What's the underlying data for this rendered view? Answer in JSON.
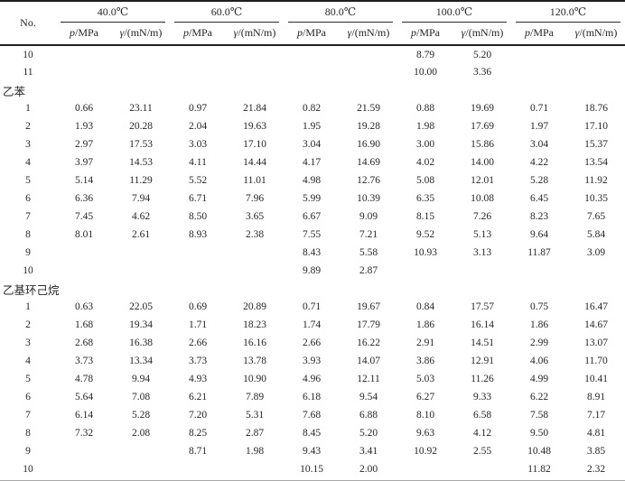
{
  "table": {
    "no_header": "No.",
    "temp_groups": [
      "40.0℃",
      "60.0℃",
      "80.0℃",
      "100.0℃",
      "120.0℃"
    ],
    "pressure_symbol": "p",
    "pressure_unit": "/MPa",
    "tension_symbol": "γ",
    "tension_unit": "/(mN/m)",
    "sections": [
      "乙苯",
      "乙基环己烷"
    ],
    "rows": [
      {
        "type": "data",
        "no": "10",
        "values": [
          "",
          "",
          "",
          "",
          "",
          "",
          "8.79",
          "5.20",
          "",
          ""
        ]
      },
      {
        "type": "data",
        "no": "11",
        "values": [
          "",
          "",
          "",
          "",
          "",
          "",
          "10.00",
          "3.36",
          "",
          ""
        ]
      },
      {
        "type": "section",
        "label": "乙苯"
      },
      {
        "type": "data",
        "no": "1",
        "values": [
          "0.66",
          "23.11",
          "0.97",
          "21.84",
          "0.82",
          "21.59",
          "0.88",
          "19.69",
          "0.71",
          "18.76"
        ]
      },
      {
        "type": "data",
        "no": "2",
        "values": [
          "1.93",
          "20.28",
          "2.04",
          "19.63",
          "1.95",
          "19.28",
          "1.98",
          "17.69",
          "1.97",
          "17.10"
        ]
      },
      {
        "type": "data",
        "no": "3",
        "values": [
          "2.97",
          "17.53",
          "3.03",
          "17.10",
          "3.04",
          "16.90",
          "3.00",
          "15.86",
          "3.04",
          "15.37"
        ]
      },
      {
        "type": "data",
        "no": "4",
        "values": [
          "3.97",
          "14.53",
          "4.11",
          "14.44",
          "4.17",
          "14.69",
          "4.02",
          "14.00",
          "4.22",
          "13.54"
        ]
      },
      {
        "type": "data",
        "no": "5",
        "values": [
          "5.14",
          "11.29",
          "5.52",
          "11.01",
          "4.98",
          "12.76",
          "5.08",
          "12.01",
          "5.28",
          "11.92"
        ]
      },
      {
        "type": "data",
        "no": "6",
        "values": [
          "6.36",
          "7.94",
          "6.71",
          "7.96",
          "5.99",
          "10.39",
          "6.35",
          "10.08",
          "6.45",
          "10.35"
        ]
      },
      {
        "type": "data",
        "no": "7",
        "values": [
          "7.45",
          "4.62",
          "8.50",
          "3.65",
          "6.67",
          "9.09",
          "8.15",
          "7.26",
          "8.23",
          "7.65"
        ]
      },
      {
        "type": "data",
        "no": "8",
        "values": [
          "8.01",
          "2.61",
          "8.93",
          "2.38",
          "7.55",
          "7.21",
          "9.52",
          "5.13",
          "9.64",
          "5.84"
        ]
      },
      {
        "type": "data",
        "no": "9",
        "values": [
          "",
          "",
          "",
          "",
          "8.43",
          "5.58",
          "10.93",
          "3.13",
          "11.87",
          "3.09"
        ]
      },
      {
        "type": "data",
        "no": "10",
        "values": [
          "",
          "",
          "",
          "",
          "9.89",
          "2.87",
          "",
          "",
          "",
          ""
        ]
      },
      {
        "type": "section",
        "label": "乙基环己烷"
      },
      {
        "type": "data",
        "no": "1",
        "values": [
          "0.63",
          "22.05",
          "0.69",
          "20.89",
          "0.71",
          "19.67",
          "0.84",
          "17.57",
          "0.75",
          "16.47"
        ]
      },
      {
        "type": "data",
        "no": "2",
        "values": [
          "1.68",
          "19.34",
          "1.71",
          "18.23",
          "1.74",
          "17.79",
          "1.86",
          "16.14",
          "1.86",
          "14.67"
        ]
      },
      {
        "type": "data",
        "no": "3",
        "values": [
          "2.68",
          "16.38",
          "2.66",
          "16.16",
          "2.66",
          "16.22",
          "2.91",
          "14.51",
          "2.99",
          "13.07"
        ]
      },
      {
        "type": "data",
        "no": "4",
        "values": [
          "3.73",
          "13.34",
          "3.73",
          "13.78",
          "3.93",
          "14.07",
          "3.86",
          "12.91",
          "4.06",
          "11.70"
        ]
      },
      {
        "type": "data",
        "no": "5",
        "values": [
          "4.78",
          "9.94",
          "4.93",
          "10.90",
          "4.96",
          "12.11",
          "5.03",
          "11.26",
          "4.99",
          "10.41"
        ]
      },
      {
        "type": "data",
        "no": "6",
        "values": [
          "5.64",
          "7.08",
          "6.21",
          "7.89",
          "6.18",
          "9.54",
          "6.27",
          "9.33",
          "6.22",
          "8.91"
        ]
      },
      {
        "type": "data",
        "no": "7",
        "values": [
          "6.14",
          "5.28",
          "7.20",
          "5.31",
          "7.68",
          "6.88",
          "8.10",
          "6.58",
          "7.58",
          "7.17"
        ]
      },
      {
        "type": "data",
        "no": "8",
        "values": [
          "7.32",
          "2.08",
          "8.25",
          "2.87",
          "8.45",
          "5.20",
          "9.63",
          "4.12",
          "9.50",
          "4.81"
        ]
      },
      {
        "type": "data",
        "no": "9",
        "values": [
          "",
          "",
          "8.71",
          "1.98",
          "9.43",
          "3.41",
          "10.92",
          "2.55",
          "10.48",
          "3.85"
        ]
      },
      {
        "type": "data",
        "no": "10",
        "values": [
          "",
          "",
          "",
          "",
          "10.15",
          "2.00",
          "",
          "",
          "11.82",
          "2.32"
        ]
      }
    ]
  }
}
